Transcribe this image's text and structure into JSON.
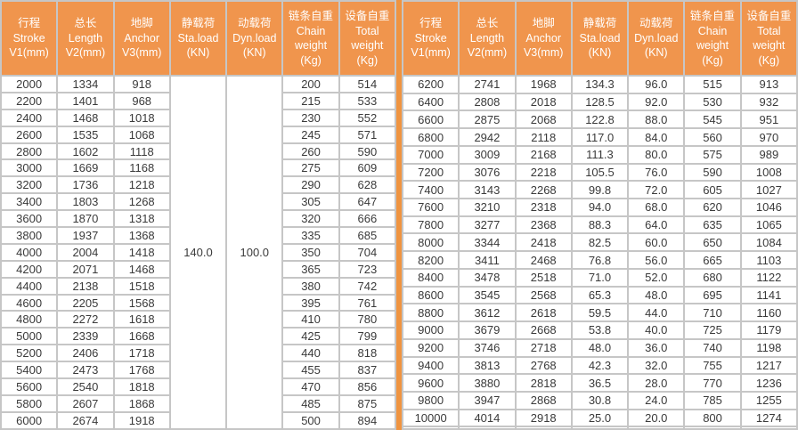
{
  "colors": {
    "header_bg": "#F0954D",
    "divider": "#EF9440",
    "grid": "#C6C6C6",
    "header_text": "#FFFFFF",
    "cell_text": "#3A3A3A",
    "cell_bg": "#FFFFFF"
  },
  "header": {
    "columns": [
      {
        "text": "行程\nStroke\nV1(mm)"
      },
      {
        "text": "总长\nLength\nV2(mm)"
      },
      {
        "text": "地脚\nAnchor\nV3(mm)"
      },
      {
        "text": "静载荷\nSta.load\n(KN)"
      },
      {
        "text": "动载荷\nDyn.load\n(KN)"
      },
      {
        "text": "链条自重\nChain\nweight\n(Kg)"
      },
      {
        "text": "设备自重\nTotal\nweight\n(Kg)"
      }
    ]
  },
  "left_table": {
    "sta_load": "140.0",
    "dyn_load": "100.0",
    "rows": [
      [
        "2000",
        "1334",
        "918",
        "200",
        "514"
      ],
      [
        "2200",
        "1401",
        "968",
        "215",
        "533"
      ],
      [
        "2400",
        "1468",
        "1018",
        "230",
        "552"
      ],
      [
        "2600",
        "1535",
        "1068",
        "245",
        "571"
      ],
      [
        "2800",
        "1602",
        "1118",
        "260",
        "590"
      ],
      [
        "3000",
        "1669",
        "1168",
        "275",
        "609"
      ],
      [
        "3200",
        "1736",
        "1218",
        "290",
        "628"
      ],
      [
        "3400",
        "1803",
        "1268",
        "305",
        "647"
      ],
      [
        "3600",
        "1870",
        "1318",
        "320",
        "666"
      ],
      [
        "3800",
        "1937",
        "1368",
        "335",
        "685"
      ],
      [
        "4000",
        "2004",
        "1418",
        "350",
        "704"
      ],
      [
        "4200",
        "2071",
        "1468",
        "365",
        "723"
      ],
      [
        "4400",
        "2138",
        "1518",
        "380",
        "742"
      ],
      [
        "4600",
        "2205",
        "1568",
        "395",
        "761"
      ],
      [
        "4800",
        "2272",
        "1618",
        "410",
        "780"
      ],
      [
        "5000",
        "2339",
        "1668",
        "425",
        "799"
      ],
      [
        "5200",
        "2406",
        "1718",
        "440",
        "818"
      ],
      [
        "5400",
        "2473",
        "1768",
        "455",
        "837"
      ],
      [
        "5600",
        "2540",
        "1818",
        "470",
        "856"
      ],
      [
        "5800",
        "2607",
        "1868",
        "485",
        "875"
      ],
      [
        "6000",
        "2674",
        "1918",
        "500",
        "894"
      ]
    ]
  },
  "right_table": {
    "rows": [
      [
        "6200",
        "2741",
        "1968",
        "134.3",
        "96.0",
        "515",
        "913"
      ],
      [
        "6400",
        "2808",
        "2018",
        "128.5",
        "92.0",
        "530",
        "932"
      ],
      [
        "6600",
        "2875",
        "2068",
        "122.8",
        "88.0",
        "545",
        "951"
      ],
      [
        "6800",
        "2942",
        "2118",
        "117.0",
        "84.0",
        "560",
        "970"
      ],
      [
        "7000",
        "3009",
        "2168",
        "111.3",
        "80.0",
        "575",
        "989"
      ],
      [
        "7200",
        "3076",
        "2218",
        "105.5",
        "76.0",
        "590",
        "1008"
      ],
      [
        "7400",
        "3143",
        "2268",
        "99.8",
        "72.0",
        "605",
        "1027"
      ],
      [
        "7600",
        "3210",
        "2318",
        "94.0",
        "68.0",
        "620",
        "1046"
      ],
      [
        "7800",
        "3277",
        "2368",
        "88.3",
        "64.0",
        "635",
        "1065"
      ],
      [
        "8000",
        "3344",
        "2418",
        "82.5",
        "60.0",
        "650",
        "1084"
      ],
      [
        "8200",
        "3411",
        "2468",
        "76.8",
        "56.0",
        "665",
        "1103"
      ],
      [
        "8400",
        "3478",
        "2518",
        "71.0",
        "52.0",
        "680",
        "1122"
      ],
      [
        "8600",
        "3545",
        "2568",
        "65.3",
        "48.0",
        "695",
        "1141"
      ],
      [
        "8800",
        "3612",
        "2618",
        "59.5",
        "44.0",
        "710",
        "1160"
      ],
      [
        "9000",
        "3679",
        "2668",
        "53.8",
        "40.0",
        "725",
        "1179"
      ],
      [
        "9200",
        "3746",
        "2718",
        "48.0",
        "36.0",
        "740",
        "1198"
      ],
      [
        "9400",
        "3813",
        "2768",
        "42.3",
        "32.0",
        "755",
        "1217"
      ],
      [
        "9600",
        "3880",
        "2818",
        "36.5",
        "28.0",
        "770",
        "1236"
      ],
      [
        "9800",
        "3947",
        "2868",
        "30.8",
        "24.0",
        "785",
        "1255"
      ],
      [
        "10000",
        "4014",
        "2918",
        "25.0",
        "20.0",
        "800",
        "1274"
      ],
      [
        "",
        "",
        "",
        "",
        "",
        "",
        ""
      ]
    ]
  }
}
